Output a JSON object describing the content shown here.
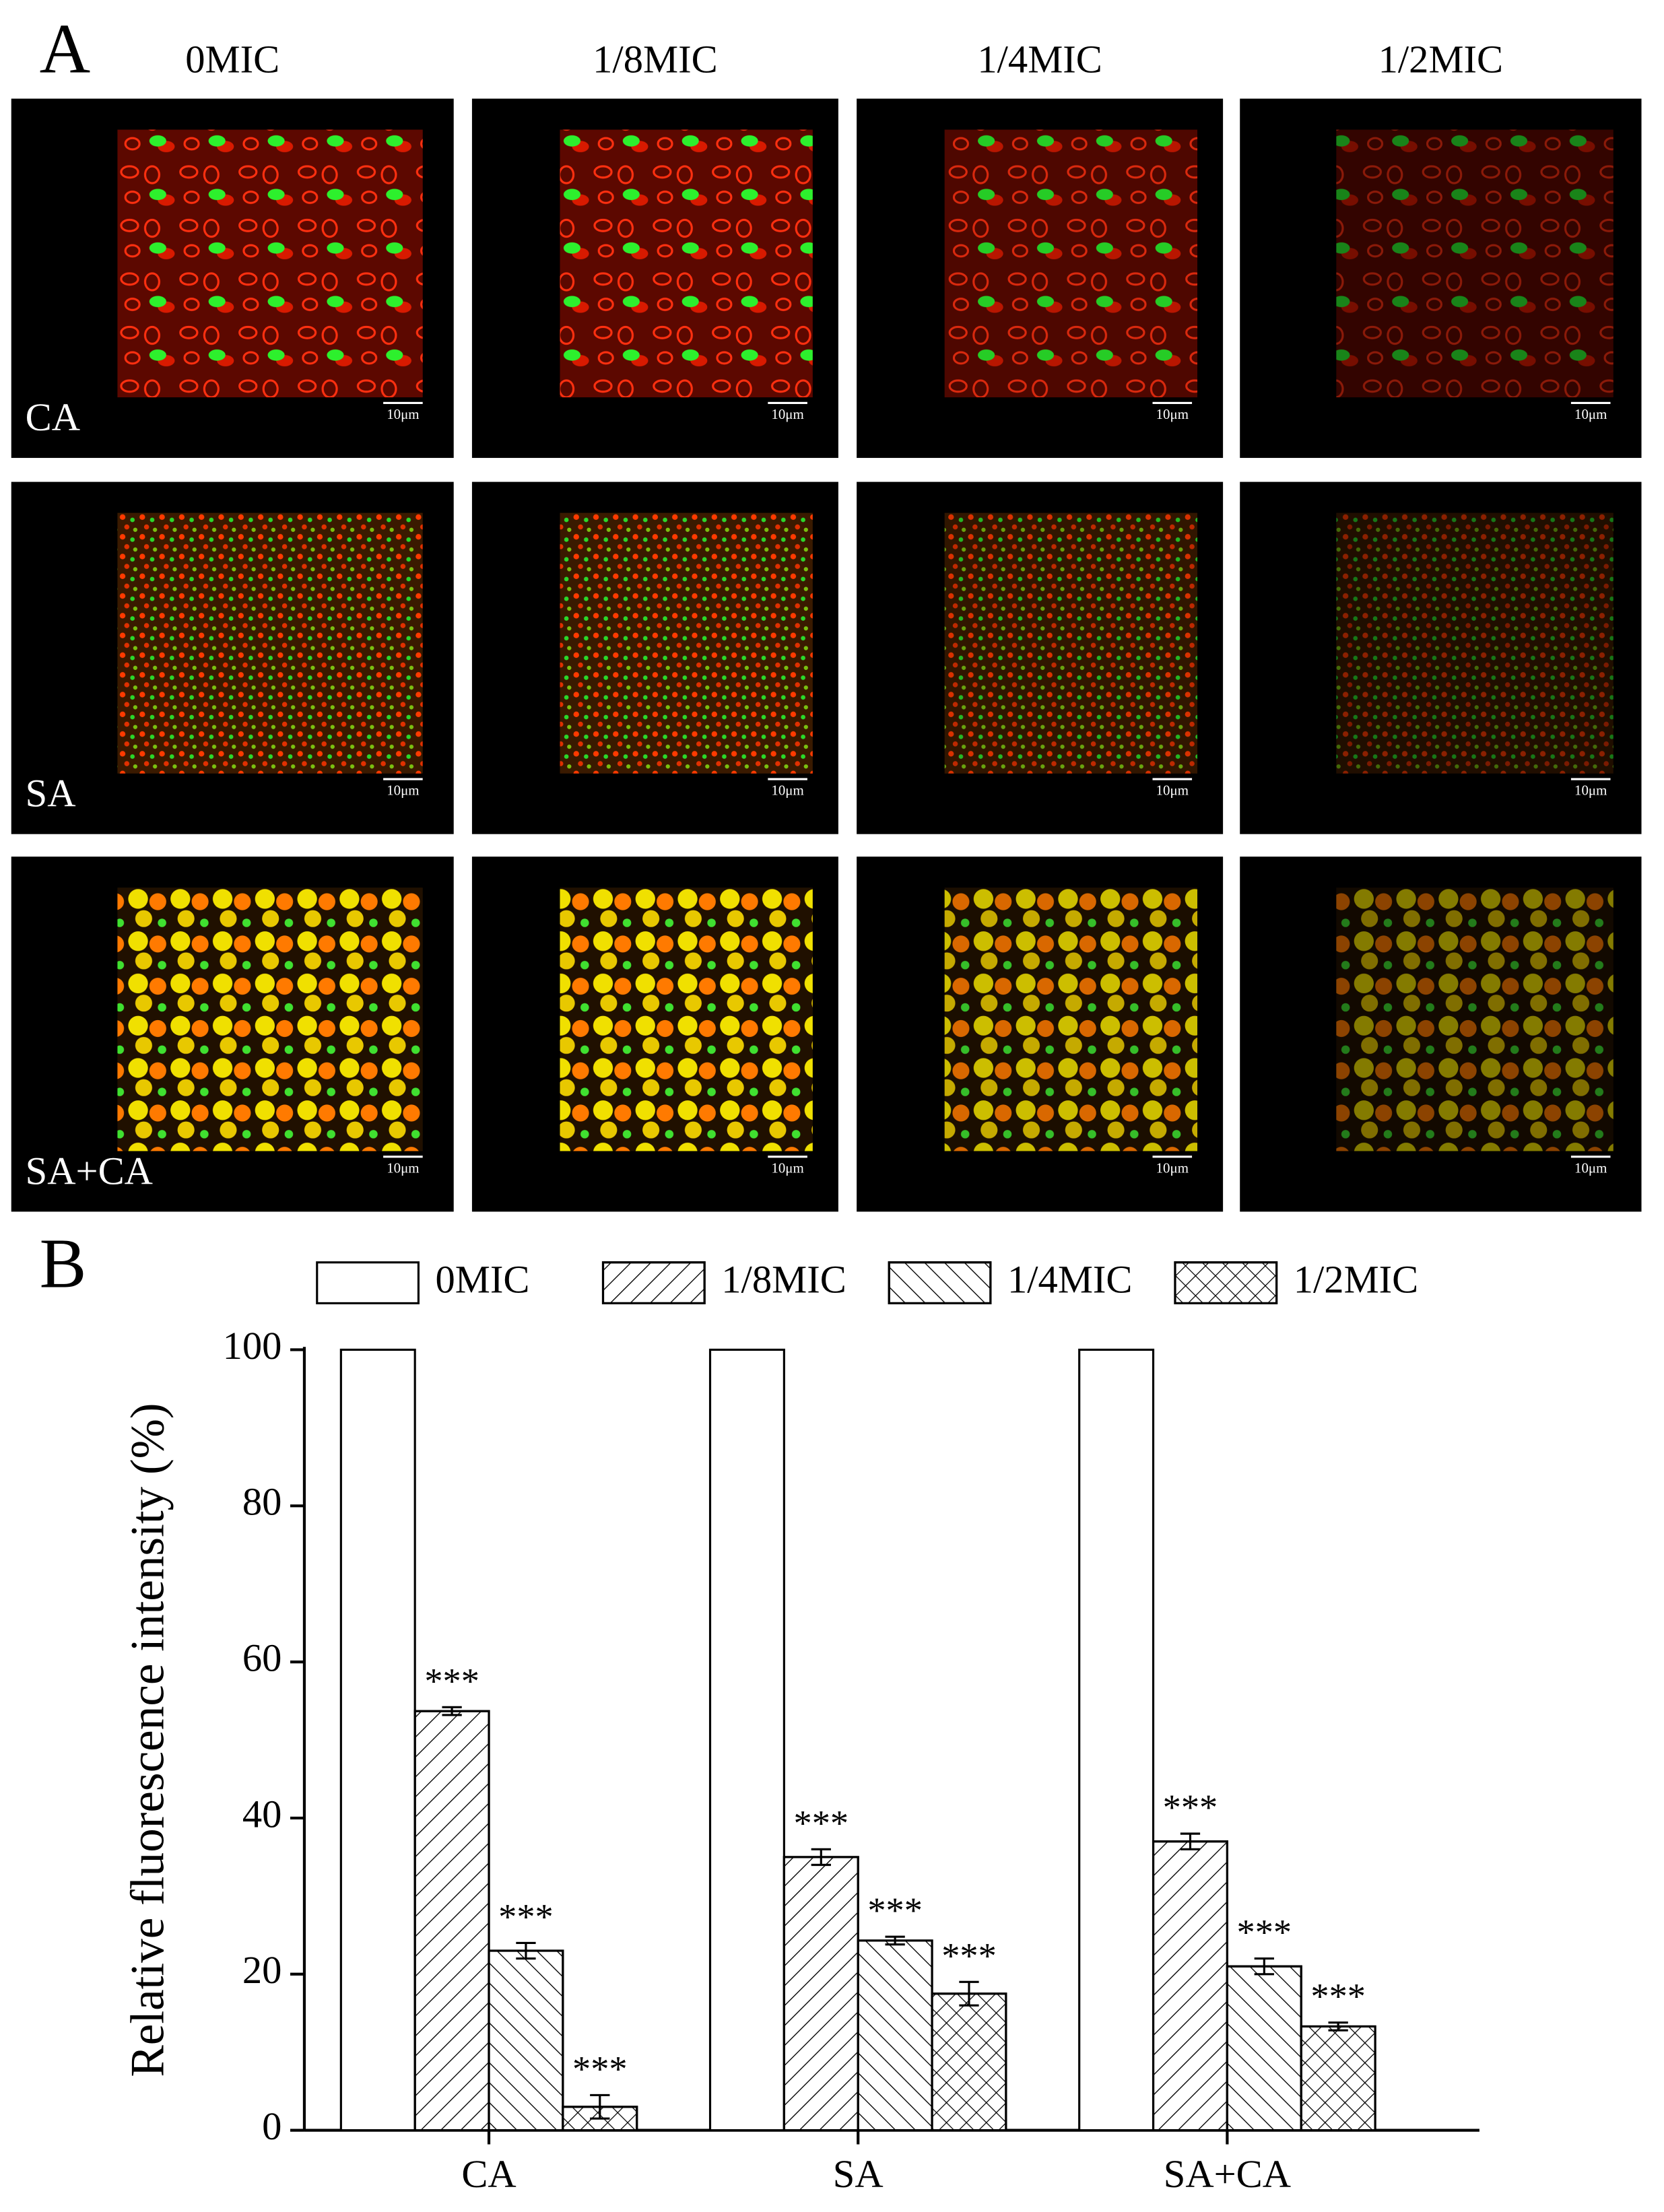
{
  "panel_a": {
    "label": "A",
    "columns": [
      "0MIC",
      "1/8MIC",
      "1/4MIC",
      "1/2MIC"
    ],
    "rows": [
      "CA",
      "SA",
      "SA+CA"
    ],
    "scale_bar": "10μm"
  },
  "chart_data": {
    "type": "bar",
    "panel_label": "B",
    "ylabel": "Relative fluorescence intensity (%)",
    "categories": [
      "CA",
      "SA",
      "SA+CA"
    ],
    "series": [
      {
        "name": "0MIC",
        "color": "#ffffff",
        "hatch": "none",
        "values": [
          100,
          100,
          100
        ],
        "errors": [
          null,
          null,
          null
        ],
        "significance": [
          null,
          null,
          null
        ]
      },
      {
        "name": "1/8MIC",
        "color": "#ffffff",
        "hatch": "/",
        "values": [
          53.7,
          35,
          37
        ],
        "errors": [
          0.5,
          1,
          1
        ],
        "significance": [
          "***",
          "***",
          "***"
        ]
      },
      {
        "name": "1/4MIC",
        "color": "#ffffff",
        "hatch": "\\",
        "values": [
          23,
          24.3,
          21
        ],
        "errors": [
          1,
          0.5,
          1
        ],
        "significance": [
          "***",
          "***",
          "***"
        ]
      },
      {
        "name": "1/2MIC",
        "color": "#ffffff",
        "hatch": "x",
        "values": [
          3,
          17.5,
          13.3
        ],
        "errors": [
          1.5,
          1.5,
          0.5
        ],
        "significance": [
          "***",
          "***",
          "***"
        ]
      }
    ],
    "ylim": [
      0,
      100
    ],
    "yticks": [
      0,
      20,
      40,
      60,
      80,
      100
    ],
    "grid": false,
    "legend": "top"
  }
}
